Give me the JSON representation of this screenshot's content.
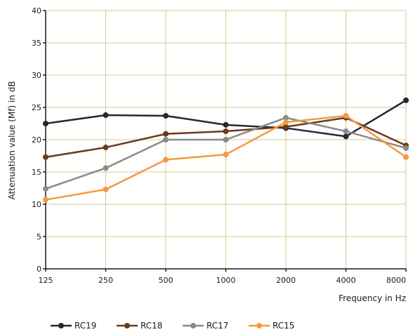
{
  "chart_data": {
    "type": "line",
    "categories": [
      "125",
      "250",
      "500",
      "1000",
      "2000",
      "4000",
      "8000"
    ],
    "xlabel": "Frequency in Hz",
    "ylabel": "Attenuation value (Mf) in dB",
    "ylim": [
      0,
      40
    ],
    "yticks": [
      0,
      5,
      10,
      15,
      20,
      25,
      30,
      35,
      40
    ],
    "grid": true,
    "legend_position": "bottom",
    "series": [
      {
        "name": "RC19",
        "color": "#222a30",
        "values": [
          22.5,
          23.8,
          23.7,
          22.3,
          21.8,
          20.5,
          26.1
        ]
      },
      {
        "name": "RC18",
        "color": "#6b3a1c",
        "values": [
          17.3,
          18.8,
          20.9,
          21.3,
          22.0,
          23.4,
          19.1
        ]
      },
      {
        "name": "RC17",
        "color": "#8a8a8a",
        "values": [
          12.4,
          15.6,
          20.0,
          20.0,
          23.4,
          21.3,
          18.7
        ]
      },
      {
        "name": "RC15",
        "color": "#f39a40",
        "values": [
          10.7,
          12.3,
          16.9,
          17.7,
          22.7,
          23.7,
          17.3
        ]
      }
    ],
    "colors": {
      "grid": "#d4c890",
      "axis": "#1a1a1a"
    }
  }
}
